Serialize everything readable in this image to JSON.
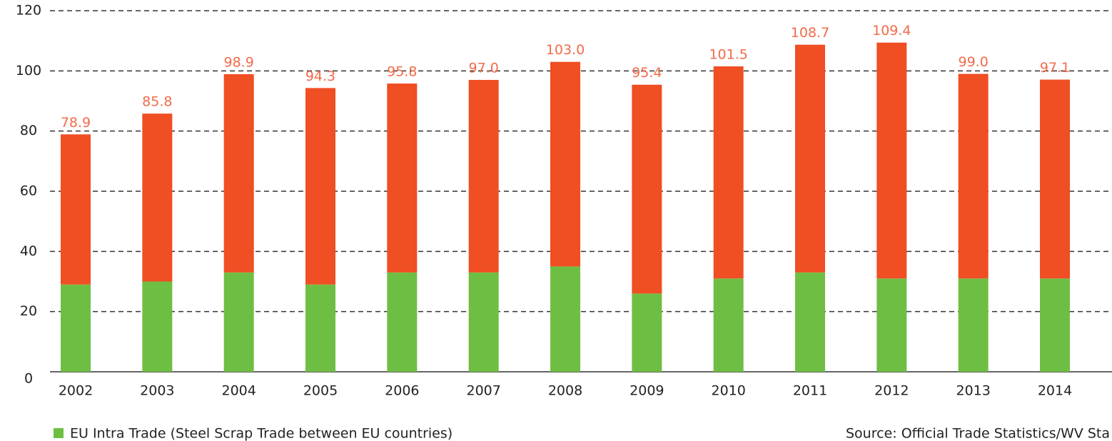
{
  "chart_data": {
    "type": "bar",
    "stacked": true,
    "categories": [
      "2002",
      "2003",
      "2004",
      "2005",
      "2006",
      "2007",
      "2008",
      "2009",
      "2010",
      "2011",
      "2012",
      "2013",
      "2014"
    ],
    "series": [
      {
        "name": "EU Intra Trade (Steel Scrap Trade between EU countries)",
        "color": "#6fbe44",
        "values": [
          29,
          30,
          33,
          29,
          33,
          33,
          35,
          26,
          31,
          33,
          31,
          31,
          31
        ]
      },
      {
        "color": "#f04e23",
        "values": [
          49.9,
          55.8,
          65.9,
          65.3,
          62.8,
          64.0,
          68.0,
          69.4,
          70.5,
          75.7,
          78.4,
          68.0,
          66.1
        ]
      }
    ],
    "totals": [
      78.9,
      85.8,
      98.9,
      94.3,
      95.8,
      97.0,
      103.0,
      95.4,
      101.5,
      108.7,
      109.4,
      99.0,
      97.1
    ],
    "value_labels": [
      "78.9",
      "85.8",
      "98.9",
      "94.3",
      "95.8",
      "97.0",
      "103.0",
      "95.4",
      "101.5",
      "108.7",
      "109.4",
      "99.0",
      "97.1"
    ],
    "ylim": [
      0,
      120
    ],
    "yticks": [
      0,
      20,
      40,
      60,
      80,
      100,
      120
    ],
    "grid": true,
    "source": "Source: Official Trade Statistics/WV Sta"
  }
}
